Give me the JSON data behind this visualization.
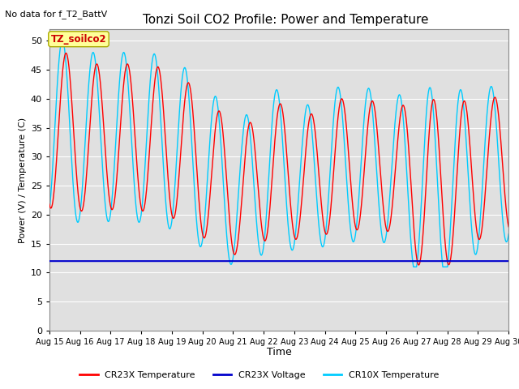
{
  "title": "Tonzi Soil CO2 Profile: Power and Temperature",
  "subtitle": "No data for f_T2_BattV",
  "ylabel": "Power (V) / Temperature (C)",
  "xlabel": "Time",
  "ylim": [
    0,
    52
  ],
  "yticks": [
    0,
    5,
    10,
    15,
    20,
    25,
    30,
    35,
    40,
    45,
    50
  ],
  "bg_color": "#e0e0e0",
  "legend_entries": [
    "CR23X Temperature",
    "CR23X Voltage",
    "CR10X Temperature"
  ],
  "legend_colors": [
    "#ff0000",
    "#0000cc",
    "#00ccff"
  ],
  "cr23x_temp_color": "#ff0000",
  "cr10x_temp_color": "#00ccff",
  "voltage_color": "#0000cc",
  "voltage_value": 12.0,
  "inset_label": "TZ_soilco2",
  "inset_color": "#ffff99",
  "inset_border": "#aaaa00",
  "title_fontsize": 11,
  "subtitle_fontsize": 8,
  "axis_label_fontsize": 8,
  "tick_fontsize": 7,
  "legend_fontsize": 8,
  "xtick_labels": [
    "Aug 15",
    "Aug 16",
    "Aug 17",
    "Aug 18",
    "Aug 19",
    "Aug 20",
    "Aug 21",
    "Aug 22",
    "Aug 23",
    "Aug 24",
    "Aug 25",
    "Aug 26",
    "Aug 27",
    "Aug 28",
    "Aug 29",
    "Aug 30"
  ],
  "peaks_cr23x": [
    48.5,
    46.0,
    46.0,
    46.0,
    44.0,
    39.0,
    34.5,
    40.0,
    36.5,
    40.0,
    40.0,
    38.5,
    40.0,
    39.5,
    40.0,
    41.0
  ],
  "troughs_cr23x": [
    21.0,
    20.5,
    21.0,
    20.5,
    19.0,
    15.0,
    12.5,
    16.5,
    15.5,
    17.0,
    17.5,
    17.0,
    9.5,
    12.0,
    17.0,
    17.5
  ],
  "cr10x_lead": 0.12,
  "cr10x_amp_extra": 2.0
}
